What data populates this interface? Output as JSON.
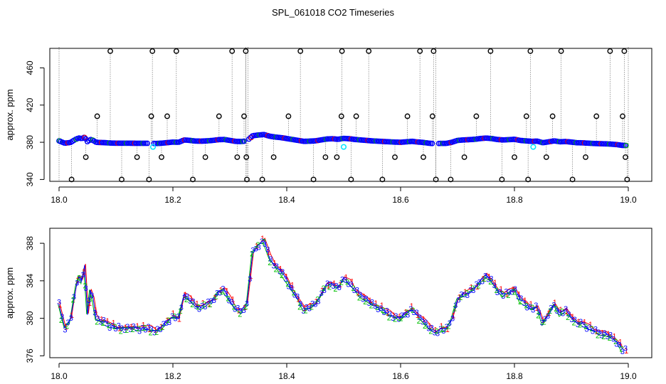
{
  "title": "SPL_061018  CO2 Timeseries",
  "colors": {
    "series_1": "#ff0000",
    "series_2": "#00c000",
    "series_3": "#0000ff",
    "outlier": "#000000",
    "flagged": "#00e5ff",
    "spike": "#888888",
    "frame": "#000000"
  },
  "chart_data": [
    {
      "type": "scatter",
      "name": "top-panel",
      "xlabel": "",
      "ylabel": "approx. ppm",
      "xlim": [
        18.0,
        19.0
      ],
      "ylim": [
        338,
        481
      ],
      "xticks": [
        18.0,
        18.2,
        18.4,
        18.6,
        18.8,
        19.0
      ],
      "xtick_labels": [
        "18.0",
        "18.2",
        "18.4",
        "18.6",
        "18.8",
        "19.0"
      ],
      "yticks": [
        340,
        380,
        420,
        460
      ],
      "ytick_labels": [
        "340",
        "380",
        "420",
        "460"
      ],
      "outlier_marker": "circle",
      "outliers": [
        {
          "x": 18.022,
          "y": 340
        },
        {
          "x": 18.047,
          "y": 364
        },
        {
          "x": 18.067,
          "y": 408
        },
        {
          "x": 18.09,
          "y": 478
        },
        {
          "x": 18.11,
          "y": 340
        },
        {
          "x": 18.137,
          "y": 364
        },
        {
          "x": 18.158,
          "y": 340
        },
        {
          "x": 18.162,
          "y": 408
        },
        {
          "x": 18.164,
          "y": 478
        },
        {
          "x": 18.18,
          "y": 364
        },
        {
          "x": 18.19,
          "y": 408
        },
        {
          "x": 18.206,
          "y": 478
        },
        {
          "x": 18.235,
          "y": 340
        },
        {
          "x": 18.257,
          "y": 364
        },
        {
          "x": 18.281,
          "y": 408
        },
        {
          "x": 18.304,
          "y": 478
        },
        {
          "x": 18.313,
          "y": 364
        },
        {
          "x": 18.325,
          "y": 408
        },
        {
          "x": 18.328,
          "y": 478
        },
        {
          "x": 18.329,
          "y": 364
        },
        {
          "x": 18.33,
          "y": 340
        },
        {
          "x": 18.357,
          "y": 340
        },
        {
          "x": 18.377,
          "y": 364
        },
        {
          "x": 18.403,
          "y": 408
        },
        {
          "x": 18.424,
          "y": 478
        },
        {
          "x": 18.447,
          "y": 340
        },
        {
          "x": 18.468,
          "y": 364
        },
        {
          "x": 18.488,
          "y": 364
        },
        {
          "x": 18.496,
          "y": 408
        },
        {
          "x": 18.497,
          "y": 478
        },
        {
          "x": 18.513,
          "y": 340
        },
        {
          "x": 18.522,
          "y": 408
        },
        {
          "x": 18.544,
          "y": 478
        },
        {
          "x": 18.568,
          "y": 340
        },
        {
          "x": 18.59,
          "y": 364
        },
        {
          "x": 18.612,
          "y": 408
        },
        {
          "x": 18.634,
          "y": 478
        },
        {
          "x": 18.64,
          "y": 364
        },
        {
          "x": 18.656,
          "y": 408
        },
        {
          "x": 18.658,
          "y": 478
        },
        {
          "x": 18.662,
          "y": 340
        },
        {
          "x": 18.688,
          "y": 340
        },
        {
          "x": 18.712,
          "y": 364
        },
        {
          "x": 18.733,
          "y": 408
        },
        {
          "x": 18.758,
          "y": 478
        },
        {
          "x": 18.778,
          "y": 340
        },
        {
          "x": 18.8,
          "y": 364
        },
        {
          "x": 18.821,
          "y": 408
        },
        {
          "x": 18.824,
          "y": 340
        },
        {
          "x": 18.828,
          "y": 478
        },
        {
          "x": 18.856,
          "y": 364
        },
        {
          "x": 18.867,
          "y": 408
        },
        {
          "x": 18.882,
          "y": 478
        },
        {
          "x": 18.902,
          "y": 340
        },
        {
          "x": 18.925,
          "y": 364
        },
        {
          "x": 18.944,
          "y": 408
        },
        {
          "x": 18.968,
          "y": 478
        },
        {
          "x": 18.99,
          "y": 408
        },
        {
          "x": 18.993,
          "y": 478
        },
        {
          "x": 18.995,
          "y": 364
        },
        {
          "x": 18.998,
          "y": 340
        }
      ],
      "flagged_points": [
        {
          "x": 18.165,
          "y": 375
        },
        {
          "x": 18.5,
          "y": 375
        },
        {
          "x": 18.833,
          "y": 375
        }
      ]
    },
    {
      "type": "line",
      "name": "bottom-panel",
      "xlabel": "",
      "ylabel": "approx. ppm",
      "xlim": [
        18.0,
        19.0
      ],
      "ylim": [
        375.8,
        389.6
      ],
      "xticks": [
        18.0,
        18.2,
        18.4,
        18.6,
        18.8,
        19.0
      ],
      "xtick_labels": [
        "18.0",
        "18.2",
        "18.4",
        "18.6",
        "18.8",
        "19.0"
      ],
      "yticks": [
        376,
        380,
        384,
        388
      ],
      "ytick_labels": [
        "376",
        "380",
        "384",
        "388"
      ],
      "series": [
        {
          "name": "1",
          "marker": "1",
          "color": "#ff0000"
        },
        {
          "name": "2",
          "marker": "2",
          "color": "#00c000"
        },
        {
          "name": "3",
          "marker": "3",
          "color": "#0000ff"
        }
      ],
      "x": [
        18.0,
        18.01,
        18.02,
        18.03,
        18.035,
        18.04,
        18.045,
        18.05,
        18.055,
        18.06,
        18.065,
        18.07,
        18.08,
        18.09,
        18.1,
        18.12,
        18.14,
        18.16,
        18.17,
        18.18,
        18.19,
        18.2,
        18.21,
        18.22,
        18.23,
        18.24,
        18.25,
        18.26,
        18.27,
        18.28,
        18.29,
        18.3,
        18.31,
        18.32,
        18.33,
        18.34,
        18.35,
        18.36,
        18.37,
        18.38,
        18.39,
        18.4,
        18.41,
        18.42,
        18.43,
        18.44,
        18.45,
        18.46,
        18.47,
        18.48,
        18.49,
        18.5,
        18.51,
        18.52,
        18.53,
        18.54,
        18.55,
        18.56,
        18.57,
        18.58,
        18.59,
        18.6,
        18.61,
        18.62,
        18.63,
        18.64,
        18.65,
        18.66,
        18.67,
        18.68,
        18.69,
        18.7,
        18.71,
        18.72,
        18.73,
        18.74,
        18.75,
        18.76,
        18.77,
        18.78,
        18.79,
        18.8,
        18.81,
        18.82,
        18.83,
        18.84,
        18.85,
        18.86,
        18.87,
        18.88,
        18.89,
        18.9,
        18.91,
        18.92,
        18.93,
        18.94,
        18.95,
        18.96,
        18.97,
        18.98,
        18.99
      ],
      "values": [
        381.5,
        379.0,
        379.8,
        383.5,
        384.5,
        384.0,
        385.5,
        380.5,
        383.0,
        382.0,
        380.0,
        379.8,
        379.6,
        379.2,
        379.0,
        379.0,
        378.9,
        378.9,
        378.7,
        379.0,
        379.6,
        380.2,
        380.0,
        382.5,
        382.0,
        381.3,
        381.2,
        381.5,
        382.0,
        382.8,
        383.0,
        382.0,
        381.0,
        380.8,
        381.5,
        387.0,
        387.8,
        388.3,
        386.5,
        385.6,
        385.0,
        384.0,
        383.0,
        382.0,
        381.0,
        381.2,
        381.5,
        382.5,
        383.5,
        383.8,
        383.2,
        384.2,
        383.8,
        383.0,
        382.5,
        382.0,
        381.5,
        381.2,
        380.8,
        380.5,
        380.2,
        380.0,
        380.5,
        381.0,
        380.3,
        379.8,
        379.0,
        378.5,
        378.8,
        378.8,
        380.0,
        382.0,
        382.5,
        382.8,
        383.2,
        384.0,
        384.5,
        384.0,
        383.0,
        382.5,
        382.8,
        383.2,
        382.0,
        381.5,
        381.0,
        381.2,
        379.5,
        380.5,
        381.5,
        380.5,
        380.8,
        380.2,
        379.5,
        379.4,
        379.0,
        378.7,
        378.5,
        378.3,
        378.0,
        377.5,
        376.6
      ]
    }
  ]
}
